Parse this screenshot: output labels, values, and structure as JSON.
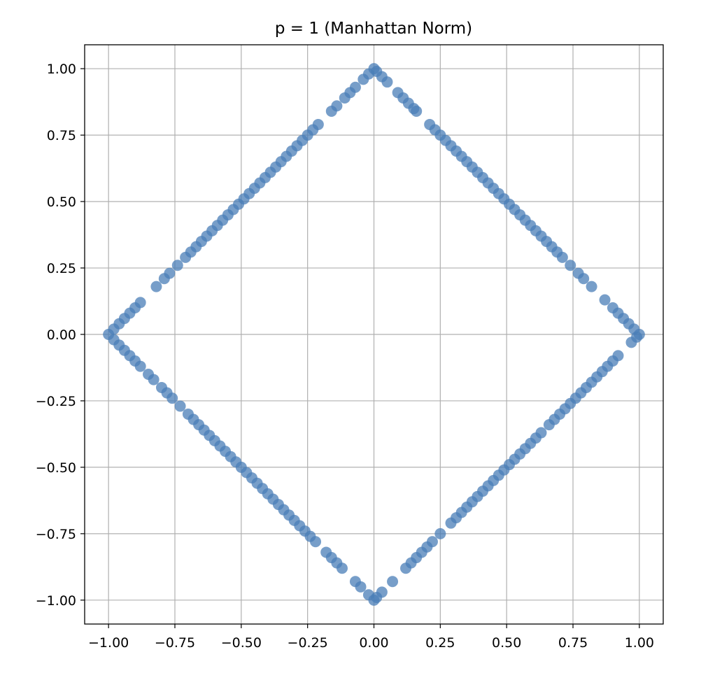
{
  "chart_data": {
    "type": "scatter",
    "title": "p = 1 (Manhattan Norm)",
    "xlabel": "",
    "ylabel": "",
    "xlim": [
      -1.09,
      1.09
    ],
    "ylim": [
      -1.09,
      1.09
    ],
    "x_ticks": [
      -1.0,
      -0.75,
      -0.5,
      -0.25,
      0.0,
      0.25,
      0.5,
      0.75,
      1.0
    ],
    "y_ticks": [
      -1.0,
      -0.75,
      -0.5,
      -0.25,
      0.0,
      0.25,
      0.5,
      0.75,
      1.0
    ],
    "x_tick_labels": [
      "−1.00",
      "−0.75",
      "−0.50",
      "−0.25",
      "0.00",
      "0.25",
      "0.50",
      "0.75",
      "1.00"
    ],
    "y_tick_labels": [
      "−1.00",
      "−0.75",
      "−0.50",
      "−0.25",
      "0.00",
      "0.25",
      "0.50",
      "0.75",
      "1.00"
    ],
    "grid": true,
    "marker_color": "#4a7eb7",
    "marker_alpha": 0.75,
    "series": [
      {
        "points": [
          [
            0.0,
            1.0
          ],
          [
            0.01,
            0.99
          ],
          [
            -0.02,
            0.98
          ],
          [
            0.03,
            0.97
          ],
          [
            -0.04,
            0.96
          ],
          [
            0.05,
            0.95
          ],
          [
            -0.07,
            0.93
          ],
          [
            0.09,
            0.91
          ],
          [
            -0.09,
            0.91
          ],
          [
            0.11,
            0.89
          ],
          [
            -0.11,
            0.89
          ],
          [
            0.13,
            0.87
          ],
          [
            -0.14,
            0.86
          ],
          [
            0.15,
            0.85
          ],
          [
            -0.16,
            0.84
          ],
          [
            0.16,
            0.84
          ],
          [
            0.21,
            0.79
          ],
          [
            -0.21,
            0.79
          ],
          [
            0.23,
            0.77
          ],
          [
            -0.23,
            0.77
          ],
          [
            0.25,
            0.75
          ],
          [
            -0.25,
            0.75
          ],
          [
            0.27,
            0.73
          ],
          [
            -0.27,
            0.73
          ],
          [
            0.29,
            0.71
          ],
          [
            -0.29,
            0.71
          ],
          [
            0.31,
            0.69
          ],
          [
            -0.31,
            0.69
          ],
          [
            0.33,
            0.67
          ],
          [
            -0.33,
            0.67
          ],
          [
            0.35,
            0.65
          ],
          [
            -0.35,
            0.65
          ],
          [
            0.37,
            0.63
          ],
          [
            -0.37,
            0.63
          ],
          [
            0.39,
            0.61
          ],
          [
            -0.39,
            0.61
          ],
          [
            0.41,
            0.59
          ],
          [
            -0.41,
            0.59
          ],
          [
            0.43,
            0.57
          ],
          [
            -0.43,
            0.57
          ],
          [
            0.45,
            0.55
          ],
          [
            -0.45,
            0.55
          ],
          [
            0.47,
            0.53
          ],
          [
            -0.47,
            0.53
          ],
          [
            0.49,
            0.51
          ],
          [
            -0.49,
            0.51
          ],
          [
            0.51,
            0.49
          ],
          [
            -0.51,
            0.49
          ],
          [
            0.53,
            0.47
          ],
          [
            -0.53,
            0.47
          ],
          [
            0.55,
            0.45
          ],
          [
            -0.55,
            0.45
          ],
          [
            0.57,
            0.43
          ],
          [
            -0.57,
            0.43
          ],
          [
            0.59,
            0.41
          ],
          [
            -0.59,
            0.41
          ],
          [
            0.61,
            0.39
          ],
          [
            -0.61,
            0.39
          ],
          [
            0.63,
            0.37
          ],
          [
            -0.63,
            0.37
          ],
          [
            0.65,
            0.35
          ],
          [
            -0.65,
            0.35
          ],
          [
            0.67,
            0.33
          ],
          [
            -0.67,
            0.33
          ],
          [
            0.69,
            0.31
          ],
          [
            -0.69,
            0.31
          ],
          [
            0.71,
            0.29
          ],
          [
            -0.71,
            0.29
          ],
          [
            0.74,
            0.26
          ],
          [
            -0.74,
            0.26
          ],
          [
            0.77,
            0.23
          ],
          [
            -0.77,
            0.23
          ],
          [
            0.79,
            0.21
          ],
          [
            -0.79,
            0.21
          ],
          [
            0.82,
            0.18
          ],
          [
            -0.82,
            0.18
          ],
          [
            0.87,
            0.13
          ],
          [
            -0.88,
            0.12
          ],
          [
            0.9,
            0.1
          ],
          [
            -0.9,
            0.1
          ],
          [
            0.92,
            0.08
          ],
          [
            -0.92,
            0.08
          ],
          [
            0.94,
            0.06
          ],
          [
            -0.94,
            0.06
          ],
          [
            0.96,
            0.04
          ],
          [
            -0.96,
            0.04
          ],
          [
            0.98,
            0.02
          ],
          [
            -0.98,
            0.02
          ],
          [
            1.0,
            0.0
          ],
          [
            -1.0,
            0.0
          ],
          [
            0.99,
            -0.01
          ],
          [
            -0.98,
            -0.02
          ],
          [
            0.97,
            -0.03
          ],
          [
            -0.96,
            -0.04
          ],
          [
            0.92,
            -0.08
          ],
          [
            -0.94,
            -0.06
          ],
          [
            0.9,
            -0.1
          ],
          [
            -0.92,
            -0.08
          ],
          [
            0.88,
            -0.12
          ],
          [
            -0.9,
            -0.1
          ],
          [
            0.86,
            -0.14
          ],
          [
            -0.88,
            -0.12
          ],
          [
            0.84,
            -0.16
          ],
          [
            -0.85,
            -0.15
          ],
          [
            0.82,
            -0.18
          ],
          [
            -0.83,
            -0.17
          ],
          [
            0.8,
            -0.2
          ],
          [
            -0.8,
            -0.2
          ],
          [
            0.78,
            -0.22
          ],
          [
            -0.78,
            -0.22
          ],
          [
            0.76,
            -0.24
          ],
          [
            -0.76,
            -0.24
          ],
          [
            0.74,
            -0.26
          ],
          [
            -0.73,
            -0.27
          ],
          [
            0.72,
            -0.28
          ],
          [
            -0.7,
            -0.3
          ],
          [
            0.7,
            -0.3
          ],
          [
            -0.68,
            -0.32
          ],
          [
            0.68,
            -0.32
          ],
          [
            -0.66,
            -0.34
          ],
          [
            0.66,
            -0.34
          ],
          [
            -0.64,
            -0.36
          ],
          [
            0.63,
            -0.37
          ],
          [
            -0.62,
            -0.38
          ],
          [
            0.61,
            -0.39
          ],
          [
            -0.6,
            -0.4
          ],
          [
            0.59,
            -0.41
          ],
          [
            -0.58,
            -0.42
          ],
          [
            0.57,
            -0.43
          ],
          [
            -0.56,
            -0.44
          ],
          [
            0.55,
            -0.45
          ],
          [
            -0.54,
            -0.46
          ],
          [
            0.53,
            -0.47
          ],
          [
            -0.52,
            -0.48
          ],
          [
            0.51,
            -0.49
          ],
          [
            -0.5,
            -0.5
          ],
          [
            0.49,
            -0.51
          ],
          [
            -0.48,
            -0.52
          ],
          [
            0.47,
            -0.53
          ],
          [
            -0.46,
            -0.54
          ],
          [
            0.45,
            -0.55
          ],
          [
            -0.44,
            -0.56
          ],
          [
            0.43,
            -0.57
          ],
          [
            -0.42,
            -0.58
          ],
          [
            0.41,
            -0.59
          ],
          [
            -0.4,
            -0.6
          ],
          [
            0.39,
            -0.61
          ],
          [
            -0.38,
            -0.62
          ],
          [
            0.37,
            -0.63
          ],
          [
            -0.36,
            -0.64
          ],
          [
            0.35,
            -0.65
          ],
          [
            -0.34,
            -0.66
          ],
          [
            0.33,
            -0.67
          ],
          [
            -0.32,
            -0.68
          ],
          [
            0.31,
            -0.69
          ],
          [
            -0.3,
            -0.7
          ],
          [
            0.29,
            -0.71
          ],
          [
            -0.28,
            -0.72
          ],
          [
            0.25,
            -0.75
          ],
          [
            -0.26,
            -0.74
          ],
          [
            0.22,
            -0.78
          ],
          [
            -0.24,
            -0.76
          ],
          [
            0.2,
            -0.8
          ],
          [
            -0.22,
            -0.78
          ],
          [
            0.18,
            -0.82
          ],
          [
            -0.18,
            -0.82
          ],
          [
            0.16,
            -0.84
          ],
          [
            -0.16,
            -0.84
          ],
          [
            0.14,
            -0.86
          ],
          [
            -0.14,
            -0.86
          ],
          [
            0.12,
            -0.88
          ],
          [
            -0.12,
            -0.88
          ],
          [
            0.07,
            -0.93
          ],
          [
            -0.07,
            -0.93
          ],
          [
            0.03,
            -0.97
          ],
          [
            -0.05,
            -0.95
          ],
          [
            0.01,
            -0.99
          ],
          [
            -0.02,
            -0.98
          ],
          [
            0.0,
            -1.0
          ]
        ]
      }
    ]
  }
}
